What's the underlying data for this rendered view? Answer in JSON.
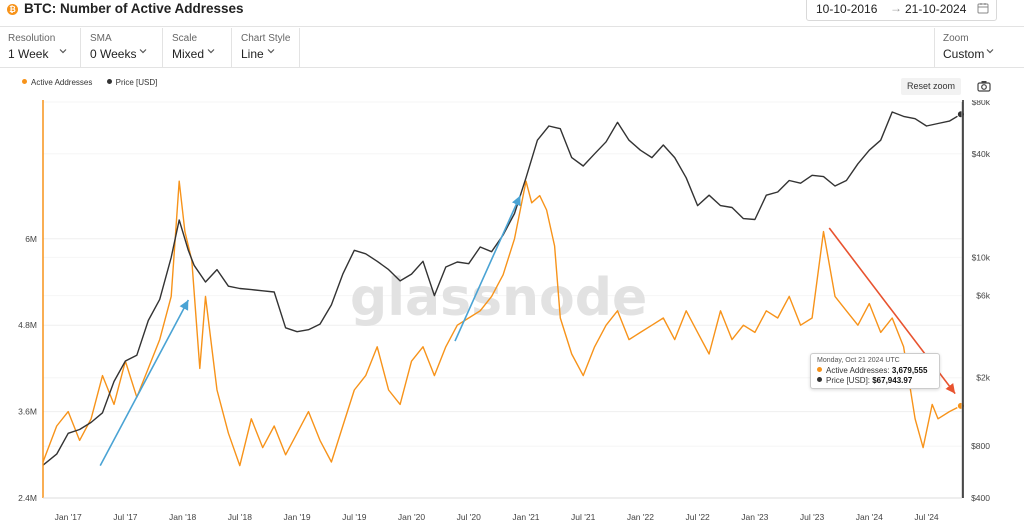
{
  "header": {
    "title": "BTC: Number of Active Addresses",
    "date_from": "10-10-2016",
    "date_to": "21-10-2024",
    "date_separator": "→"
  },
  "controls": [
    {
      "label": "Resolution",
      "value": "1 Week"
    },
    {
      "label": "SMA",
      "value": "0 Weeks"
    },
    {
      "label": "Scale",
      "value": "Mixed"
    },
    {
      "label": "Chart Style",
      "value": "Line"
    }
  ],
  "zoom": {
    "label": "Zoom",
    "value": "Custom"
  },
  "legend": [
    {
      "name": "Active Addresses",
      "color": "#f7931a"
    },
    {
      "name": "Price [USD]",
      "color": "#333333"
    }
  ],
  "reset_zoom": "Reset zoom",
  "watermark": "glassnode",
  "tooltip": {
    "date": "Monday, Oct 21 2024 UTC",
    "rows": [
      {
        "label": "Active Addresses: ",
        "value": "3,679,555",
        "color": "#f7931a"
      },
      {
        "label": "Price [USD]: ",
        "value": "$67,943.97",
        "color": "#333333"
      }
    ]
  },
  "chart_data": {
    "type": "line",
    "x_tick_labels": [
      "Jan '17",
      "Jul '17",
      "Jan '18",
      "Jul '18",
      "Jan '19",
      "Jul '19",
      "Jan '20",
      "Jul '20",
      "Jan '21",
      "Jul '21",
      "Jan '22",
      "Jul '22",
      "Jan '23",
      "Jul '23",
      "Jan '24",
      "Jul '24"
    ],
    "x_range": [
      2016.78,
      2024.81
    ],
    "left_axis": {
      "ticks": [
        2400000,
        3600000,
        4800000,
        6000000
      ],
      "labels": [
        "2.4M",
        "3.6M",
        "4.8M",
        "6M"
      ],
      "range": [
        2400000,
        7900000
      ]
    },
    "right_axis": {
      "scale": "log",
      "ticks": [
        400,
        800,
        2000,
        6000,
        10000,
        40000,
        80000
      ],
      "labels": [
        "$400",
        "$800",
        "$2k",
        "$6k",
        "$10k",
        "$40k",
        "$80k"
      ],
      "range": [
        400,
        80000
      ]
    },
    "series": [
      {
        "name": "Active Addresses",
        "color": "#f7931a",
        "axis": "left",
        "points": [
          [
            2016.78,
            2900000
          ],
          [
            2016.9,
            3400000
          ],
          [
            2017.0,
            3600000
          ],
          [
            2017.1,
            3200000
          ],
          [
            2017.2,
            3500000
          ],
          [
            2017.3,
            4100000
          ],
          [
            2017.4,
            3700000
          ],
          [
            2017.5,
            4300000
          ],
          [
            2017.6,
            3800000
          ],
          [
            2017.7,
            4200000
          ],
          [
            2017.8,
            4600000
          ],
          [
            2017.9,
            5200000
          ],
          [
            2017.97,
            6800000
          ],
          [
            2018.02,
            6100000
          ],
          [
            2018.08,
            5700000
          ],
          [
            2018.15,
            4200000
          ],
          [
            2018.2,
            5200000
          ],
          [
            2018.3,
            3900000
          ],
          [
            2018.4,
            3300000
          ],
          [
            2018.5,
            2850000
          ],
          [
            2018.6,
            3500000
          ],
          [
            2018.7,
            3100000
          ],
          [
            2018.8,
            3400000
          ],
          [
            2018.9,
            3000000
          ],
          [
            2019.0,
            3300000
          ],
          [
            2019.1,
            3600000
          ],
          [
            2019.2,
            3200000
          ],
          [
            2019.3,
            2900000
          ],
          [
            2019.4,
            3400000
          ],
          [
            2019.5,
            3900000
          ],
          [
            2019.6,
            4100000
          ],
          [
            2019.7,
            4500000
          ],
          [
            2019.8,
            3900000
          ],
          [
            2019.9,
            3700000
          ],
          [
            2020.0,
            4300000
          ],
          [
            2020.1,
            4500000
          ],
          [
            2020.2,
            4100000
          ],
          [
            2020.3,
            4500000
          ],
          [
            2020.4,
            4800000
          ],
          [
            2020.5,
            4900000
          ],
          [
            2020.6,
            5000000
          ],
          [
            2020.7,
            5200000
          ],
          [
            2020.8,
            5500000
          ],
          [
            2020.9,
            6000000
          ],
          [
            2021.0,
            6800000
          ],
          [
            2021.05,
            6500000
          ],
          [
            2021.12,
            6600000
          ],
          [
            2021.18,
            6400000
          ],
          [
            2021.25,
            5900000
          ],
          [
            2021.3,
            4900000
          ],
          [
            2021.4,
            4400000
          ],
          [
            2021.5,
            4100000
          ],
          [
            2021.6,
            4500000
          ],
          [
            2021.7,
            4800000
          ],
          [
            2021.8,
            5000000
          ],
          [
            2021.9,
            4600000
          ],
          [
            2022.0,
            4700000
          ],
          [
            2022.1,
            4800000
          ],
          [
            2022.2,
            4900000
          ],
          [
            2022.3,
            4600000
          ],
          [
            2022.4,
            5000000
          ],
          [
            2022.5,
            4700000
          ],
          [
            2022.6,
            4400000
          ],
          [
            2022.7,
            5000000
          ],
          [
            2022.8,
            4600000
          ],
          [
            2022.9,
            4800000
          ],
          [
            2023.0,
            4700000
          ],
          [
            2023.1,
            5000000
          ],
          [
            2023.2,
            4900000
          ],
          [
            2023.3,
            5200000
          ],
          [
            2023.4,
            4800000
          ],
          [
            2023.5,
            4900000
          ],
          [
            2023.6,
            6100000
          ],
          [
            2023.7,
            5200000
          ],
          [
            2023.8,
            5000000
          ],
          [
            2023.9,
            4800000
          ],
          [
            2024.0,
            5100000
          ],
          [
            2024.1,
            4700000
          ],
          [
            2024.2,
            4900000
          ],
          [
            2024.3,
            4500000
          ],
          [
            2024.4,
            3500000
          ],
          [
            2024.47,
            3100000
          ],
          [
            2024.55,
            3700000
          ],
          [
            2024.6,
            3500000
          ],
          [
            2024.7,
            3600000
          ],
          [
            2024.8,
            3680000
          ]
        ]
      },
      {
        "name": "Price [USD]",
        "color": "#333333",
        "axis": "right",
        "points": [
          [
            2016.78,
            620
          ],
          [
            2016.9,
            720
          ],
          [
            2017.0,
            950
          ],
          [
            2017.1,
            1000
          ],
          [
            2017.2,
            1100
          ],
          [
            2017.3,
            1250
          ],
          [
            2017.4,
            1900
          ],
          [
            2017.5,
            2500
          ],
          [
            2017.6,
            2700
          ],
          [
            2017.7,
            4300
          ],
          [
            2017.8,
            5700
          ],
          [
            2017.9,
            10000
          ],
          [
            2017.97,
            16500
          ],
          [
            2018.05,
            11000
          ],
          [
            2018.1,
            9000
          ],
          [
            2018.2,
            7200
          ],
          [
            2018.3,
            8500
          ],
          [
            2018.4,
            6800
          ],
          [
            2018.5,
            6600
          ],
          [
            2018.6,
            6500
          ],
          [
            2018.7,
            6400
          ],
          [
            2018.8,
            6300
          ],
          [
            2018.9,
            3900
          ],
          [
            2019.0,
            3700
          ],
          [
            2019.1,
            3800
          ],
          [
            2019.2,
            4100
          ],
          [
            2019.3,
            5300
          ],
          [
            2019.4,
            8000
          ],
          [
            2019.5,
            11000
          ],
          [
            2019.6,
            10500
          ],
          [
            2019.7,
            9500
          ],
          [
            2019.8,
            8500
          ],
          [
            2019.9,
            7300
          ],
          [
            2020.0,
            8000
          ],
          [
            2020.1,
            9500
          ],
          [
            2020.2,
            6000
          ],
          [
            2020.3,
            8800
          ],
          [
            2020.4,
            9400
          ],
          [
            2020.5,
            9200
          ],
          [
            2020.6,
            11500
          ],
          [
            2020.7,
            10800
          ],
          [
            2020.8,
            13500
          ],
          [
            2020.9,
            18000
          ],
          [
            2021.0,
            29000
          ],
          [
            2021.1,
            48000
          ],
          [
            2021.2,
            58000
          ],
          [
            2021.3,
            56000
          ],
          [
            2021.4,
            38000
          ],
          [
            2021.5,
            34000
          ],
          [
            2021.6,
            40000
          ],
          [
            2021.7,
            47000
          ],
          [
            2021.8,
            61000
          ],
          [
            2021.9,
            48000
          ],
          [
            2022.0,
            42000
          ],
          [
            2022.1,
            38000
          ],
          [
            2022.2,
            45000
          ],
          [
            2022.3,
            38000
          ],
          [
            2022.4,
            29000
          ],
          [
            2022.5,
            20000
          ],
          [
            2022.6,
            23000
          ],
          [
            2022.7,
            20000
          ],
          [
            2022.8,
            19500
          ],
          [
            2022.9,
            16800
          ],
          [
            2023.0,
            16600
          ],
          [
            2023.1,
            23000
          ],
          [
            2023.2,
            24000
          ],
          [
            2023.3,
            28000
          ],
          [
            2023.4,
            27000
          ],
          [
            2023.5,
            30000
          ],
          [
            2023.6,
            29500
          ],
          [
            2023.7,
            26000
          ],
          [
            2023.8,
            28000
          ],
          [
            2023.9,
            35000
          ],
          [
            2024.0,
            42000
          ],
          [
            2024.1,
            48000
          ],
          [
            2024.2,
            70000
          ],
          [
            2024.3,
            66000
          ],
          [
            2024.4,
            64000
          ],
          [
            2024.5,
            58000
          ],
          [
            2024.6,
            60000
          ],
          [
            2024.7,
            62000
          ],
          [
            2024.8,
            67944
          ]
        ]
      }
    ],
    "annotations": [
      {
        "type": "arrow",
        "color": "#4aa3d4",
        "from": [
          2017.28,
          2850000
        ],
        "to": [
          2018.05,
          5150000
        ]
      },
      {
        "type": "arrow",
        "color": "#4aa3d4",
        "from": [
          2020.38,
          4580000
        ],
        "to": [
          2020.95,
          6600000
        ]
      },
      {
        "type": "arrow",
        "color": "#e8532f",
        "from": [
          2023.65,
          6150000
        ],
        "to": [
          2024.75,
          3850000
        ]
      }
    ],
    "cursor_x": 2024.81,
    "grid": true,
    "legend_position": "top-left"
  }
}
